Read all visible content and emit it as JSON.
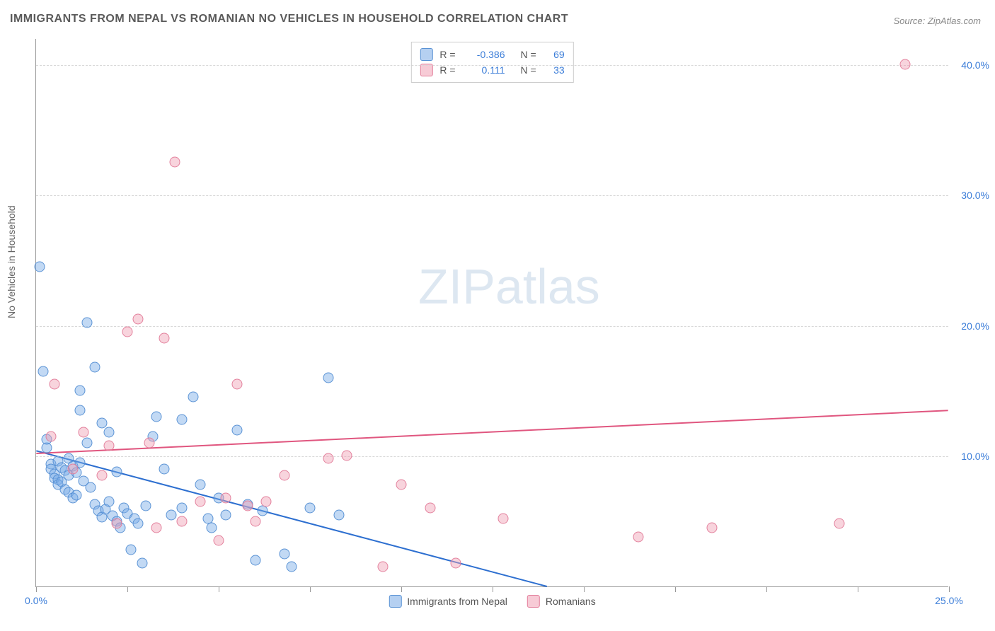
{
  "title": "IMMIGRANTS FROM NEPAL VS ROMANIAN NO VEHICLES IN HOUSEHOLD CORRELATION CHART",
  "source": "Source: ZipAtlas.com",
  "ylabel": "No Vehicles in Household",
  "watermark_bold": "ZIP",
  "watermark_light": "atlas",
  "chart": {
    "type": "scatter",
    "xlim": [
      0,
      25
    ],
    "ylim": [
      0,
      42
    ],
    "xticks": [
      0,
      2.5,
      5,
      7.5,
      10,
      12.5,
      15,
      17.5,
      20,
      22.5,
      25
    ],
    "xtick_labels": {
      "0": "0.0%",
      "25": "25.0%"
    },
    "ygrid": [
      10,
      20,
      30,
      40
    ],
    "ytick_labels": {
      "10": "10.0%",
      "20": "20.0%",
      "30": "30.0%",
      "40": "40.0%"
    },
    "background_color": "#ffffff",
    "grid_color": "#d8d8d8",
    "axis_color": "#999999",
    "label_color": "#3b7dd8",
    "marker_size": 15,
    "series": [
      {
        "id": "a",
        "label": "Immigrants from Nepal",
        "fill": "rgba(120,170,230,0.45)",
        "stroke": "rgba(80,140,210,0.9)",
        "r": -0.386,
        "n": 69,
        "trend": {
          "x1": 0,
          "y1": 10.4,
          "x2": 14,
          "y2": 0,
          "color": "#2d6fd0",
          "width": 2
        },
        "points": [
          [
            0.3,
            10.6
          ],
          [
            0.4,
            9.4
          ],
          [
            0.4,
            9.0
          ],
          [
            0.5,
            8.6
          ],
          [
            0.5,
            8.3
          ],
          [
            0.6,
            9.6
          ],
          [
            0.6,
            8.2
          ],
          [
            0.6,
            7.8
          ],
          [
            0.7,
            9.1
          ],
          [
            0.7,
            8.0
          ],
          [
            0.8,
            8.9
          ],
          [
            0.8,
            7.4
          ],
          [
            0.9,
            9.8
          ],
          [
            0.9,
            8.5
          ],
          [
            0.9,
            7.2
          ],
          [
            1.0,
            9.2
          ],
          [
            1.0,
            6.8
          ],
          [
            1.1,
            8.7
          ],
          [
            1.1,
            7.0
          ],
          [
            1.2,
            15.0
          ],
          [
            1.2,
            13.5
          ],
          [
            1.2,
            9.5
          ],
          [
            1.3,
            8.1
          ],
          [
            1.4,
            11.0
          ],
          [
            1.4,
            20.2
          ],
          [
            1.5,
            7.6
          ],
          [
            1.6,
            16.8
          ],
          [
            1.6,
            6.3
          ],
          [
            1.7,
            5.8
          ],
          [
            1.8,
            12.5
          ],
          [
            1.8,
            5.3
          ],
          [
            1.9,
            5.9
          ],
          [
            2.0,
            11.8
          ],
          [
            2.0,
            6.5
          ],
          [
            2.1,
            5.4
          ],
          [
            2.2,
            8.8
          ],
          [
            2.2,
            5.0
          ],
          [
            2.3,
            4.5
          ],
          [
            2.4,
            6.0
          ],
          [
            2.5,
            5.6
          ],
          [
            2.6,
            2.8
          ],
          [
            2.7,
            5.2
          ],
          [
            2.8,
            4.8
          ],
          [
            2.9,
            1.8
          ],
          [
            3.0,
            6.2
          ],
          [
            3.2,
            11.5
          ],
          [
            3.3,
            13.0
          ],
          [
            3.5,
            9.0
          ],
          [
            3.7,
            5.5
          ],
          [
            4.0,
            12.8
          ],
          [
            4.0,
            6.0
          ],
          [
            4.3,
            14.5
          ],
          [
            4.5,
            7.8
          ],
          [
            4.7,
            5.2
          ],
          [
            4.8,
            4.5
          ],
          [
            5.0,
            6.8
          ],
          [
            5.2,
            5.5
          ],
          [
            5.5,
            12.0
          ],
          [
            5.8,
            6.3
          ],
          [
            6.0,
            2.0
          ],
          [
            6.2,
            5.8
          ],
          [
            6.8,
            2.5
          ],
          [
            7.0,
            1.5
          ],
          [
            7.5,
            6.0
          ],
          [
            8.0,
            16.0
          ],
          [
            8.3,
            5.5
          ],
          [
            0.1,
            24.5
          ],
          [
            0.2,
            16.5
          ],
          [
            0.3,
            11.3
          ]
        ]
      },
      {
        "id": "b",
        "label": "Romanians",
        "fill": "rgba(240,160,180,0.45)",
        "stroke": "rgba(225,120,150,0.9)",
        "r": 0.111,
        "n": 33,
        "trend": {
          "x1": 0,
          "y1": 10.2,
          "x2": 25,
          "y2": 13.5,
          "color": "#e0567f",
          "width": 2
        },
        "points": [
          [
            0.4,
            11.5
          ],
          [
            0.5,
            15.5
          ],
          [
            1.0,
            9.0
          ],
          [
            1.3,
            11.8
          ],
          [
            1.8,
            8.5
          ],
          [
            2.0,
            10.8
          ],
          [
            2.2,
            4.8
          ],
          [
            2.5,
            19.5
          ],
          [
            2.8,
            20.5
          ],
          [
            3.1,
            11.0
          ],
          [
            3.3,
            4.5
          ],
          [
            3.5,
            19.0
          ],
          [
            3.8,
            32.5
          ],
          [
            4.0,
            5.0
          ],
          [
            4.5,
            6.5
          ],
          [
            5.0,
            3.5
          ],
          [
            5.2,
            6.8
          ],
          [
            5.5,
            15.5
          ],
          [
            5.8,
            6.2
          ],
          [
            6.0,
            5.0
          ],
          [
            6.3,
            6.5
          ],
          [
            6.8,
            8.5
          ],
          [
            8.0,
            9.8
          ],
          [
            8.5,
            10.0
          ],
          [
            9.5,
            1.5
          ],
          [
            10.0,
            7.8
          ],
          [
            10.8,
            6.0
          ],
          [
            11.5,
            1.8
          ],
          [
            12.8,
            5.2
          ],
          [
            16.5,
            3.8
          ],
          [
            18.5,
            4.5
          ],
          [
            22.0,
            4.8
          ],
          [
            23.8,
            40.0
          ]
        ]
      }
    ],
    "legend_top": {
      "rows": [
        {
          "swatch": "a",
          "r_label": "R =",
          "r": "-0.386",
          "n_label": "N =",
          "n": "69"
        },
        {
          "swatch": "b",
          "r_label": "R =",
          "r": "0.111",
          "n_label": "N =",
          "n": "33"
        }
      ]
    }
  }
}
